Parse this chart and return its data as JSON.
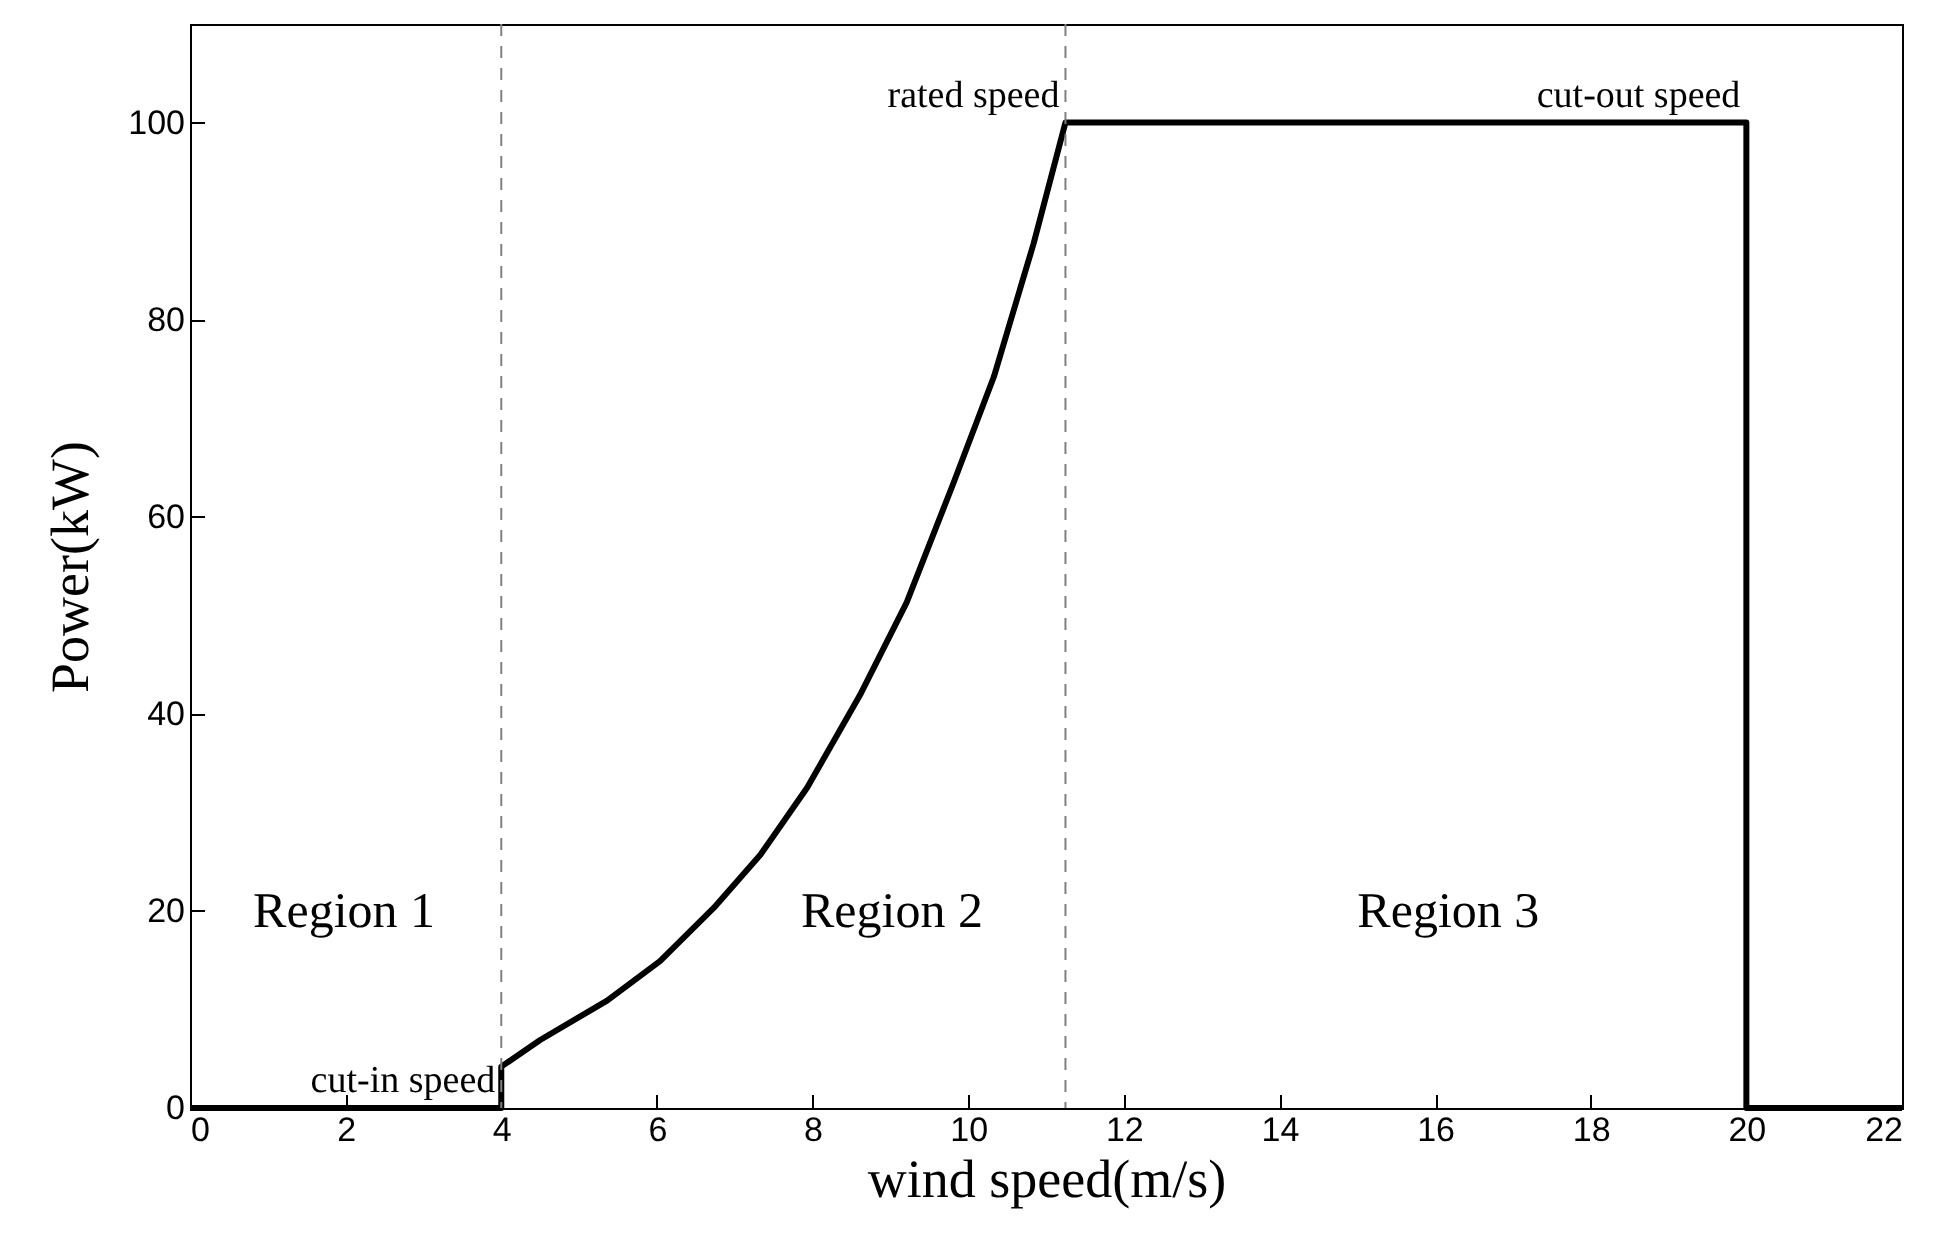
{
  "chart_data": {
    "type": "line",
    "xlabel": "wind speed(m/s)",
    "ylabel": "Power(kW)",
    "x": [
      0,
      4,
      4,
      4.5,
      5.36,
      6.04,
      6.73,
      7.33,
      7.93,
      8.61,
      9.21,
      9.81,
      10.33,
      10.84,
      11.25,
      20,
      20,
      22
    ],
    "series": [
      {
        "color": "#000000",
        "values": [
          0,
          0,
          4.2,
          6.9,
          10.9,
          14.9,
          20.3,
          25.7,
          32.5,
          41.9,
          51.3,
          63.4,
          74.2,
          87.7,
          100,
          100,
          0,
          0
        ]
      }
    ],
    "xlim": [
      0,
      22
    ],
    "xticks": [
      0,
      2,
      4,
      6,
      8,
      10,
      12,
      14,
      16,
      18,
      20,
      22
    ],
    "ylim": [
      0,
      110
    ],
    "yticks": [
      0,
      20,
      40,
      60,
      80,
      100
    ],
    "grid": false,
    "marker": "none",
    "line_style": "solid",
    "ref_lines": [
      {
        "axis": "x",
        "value": 4,
        "color": "#808080",
        "line_style": "dashed"
      },
      {
        "axis": "x",
        "value": 11.25,
        "color": "#808080",
        "line_style": "dashed"
      }
    ],
    "annotations": [
      {
        "text": "cut-in speed",
        "x": 4,
        "y": 0
      },
      {
        "text": "rated speed",
        "x": 11.25,
        "y": 100
      },
      {
        "text": "cut-out speed",
        "x": 20,
        "y": 100
      },
      "Region 1",
      "Region 2",
      "Region 3"
    ]
  }
}
